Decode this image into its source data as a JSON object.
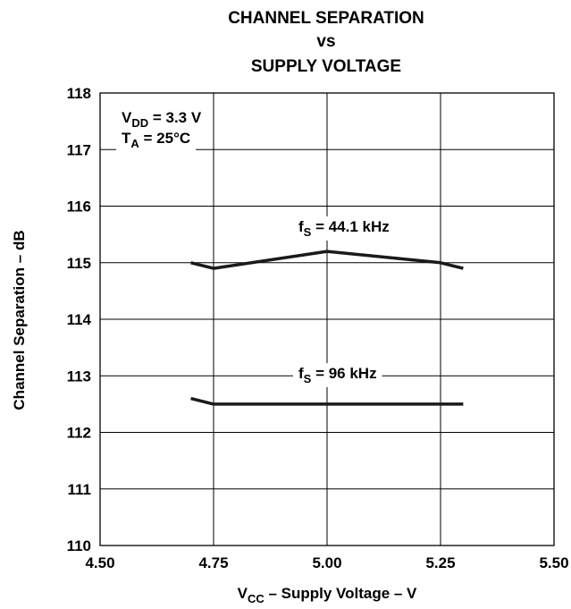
{
  "chart_data": {
    "type": "line",
    "title_lines": [
      "CHANNEL SEPARATION",
      "vs",
      "SUPPLY VOLTAGE"
    ],
    "xlabel": {
      "main": "V",
      "sub": "CC",
      "rest": " – Supply Voltage – V"
    },
    "ylabel": "Channel Separation – dB",
    "xlim": [
      4.5,
      5.5
    ],
    "ylim": [
      110,
      118
    ],
    "x_ticks": [
      4.5,
      4.75,
      5.0,
      5.25,
      5.5
    ],
    "x_tick_labels": [
      "4.50",
      "4.75",
      "5.00",
      "5.25",
      "5.50"
    ],
    "y_ticks": [
      110,
      111,
      112,
      113,
      114,
      115,
      116,
      117,
      118
    ],
    "y_tick_labels": [
      "110",
      "111",
      "112",
      "113",
      "114",
      "115",
      "116",
      "117",
      "118"
    ],
    "grid": true,
    "conditions": [
      {
        "main": "V",
        "sub": "DD",
        "rest": " = 3.3 V"
      },
      {
        "main": "T",
        "sub": "A",
        "rest": " = 25°C"
      }
    ],
    "series": [
      {
        "label": {
          "main": "f",
          "sub": "S",
          "rest": " = 44.1 kHz"
        },
        "x": [
          4.7,
          4.75,
          5.0,
          5.25,
          5.3
        ],
        "y": [
          115.0,
          114.9,
          115.2,
          115.0,
          114.9
        ]
      },
      {
        "label": {
          "main": "f",
          "sub": "S",
          "rest": " = 96 kHz"
        },
        "x": [
          4.7,
          4.75,
          5.0,
          5.25,
          5.3
        ],
        "y": [
          112.6,
          112.5,
          112.5,
          112.5,
          112.5
        ]
      }
    ]
  }
}
